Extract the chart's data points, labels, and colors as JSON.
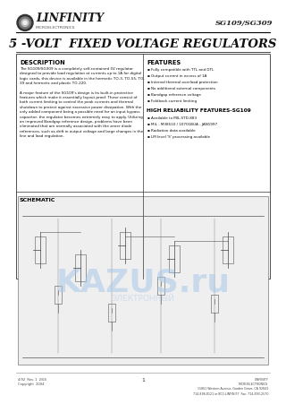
{
  "title_part": "SG109/SG309",
  "title_main": "5 -VOLT  FIXED VOLTAGE REGULATORS",
  "company_name": "LINFINITY",
  "company_sub": "MICROELECTRONICS",
  "bg_color": "#ffffff",
  "border_color": "#000000",
  "header_line_color": "#000000",
  "description_title": "DESCRIPTION",
  "description_text": "The SG109/SG309 is a completely self-contained 5V regulator\ndesigned to provide load regulation at currents up to 1A for digital\nlogic cards, this device is available in the hermetic TO-3, TO-55, TO-\n39 and hermetic and plastic TO-220.\n\nA major feature of the SG109's design is its built-in protective\nfeatures which make it essentially layout proof. These consist of\nboth current limiting to control the peak currents and thermal\nshutdown to protect against excessive power dissipation. With the\nonly added component being a possible need for an input bypass\ncapacitor, the regulator becomes extremely easy to apply. Utilizing\nan improved Bandgap reference design, problems have been\neliminated that are normally associated with the zener diode\nreferences, such as drift in output voltage and large changes in the\nline and load regulation.",
  "features_title": "FEATURES",
  "features": [
    "Fully compatible with TTL and DTL",
    "Output current in excess of 1A",
    "Internal thermal overload protection",
    "No additional external components",
    "Bandgap reference voltage",
    "Foldback current limiting"
  ],
  "high_rel_title": "HIGH RELIABILITY FEATURES-SG109",
  "high_rel_features": [
    "Available to MIL-STD-883",
    "MIL - M38510 / 10701BUA - JAN1997",
    "Radiation data available",
    "LM level 'S' processing available"
  ],
  "schematic_label": "SCHEMATIC",
  "footer_left": "4/92  Rev. 1  2/04\nCopyright  2004",
  "footer_center": "1",
  "footer_right": "LINFINITY\nMICROELECTRONICS\n11861 Western Avenue, Garden Grove, CA 92841\n714-898-8121 or 800-LINFINITY  Fax: 714-893-2570",
  "watermark_text": "KAZUS.ru",
  "watermark_sub": "ЭЛЕКТРОННЫЙ"
}
